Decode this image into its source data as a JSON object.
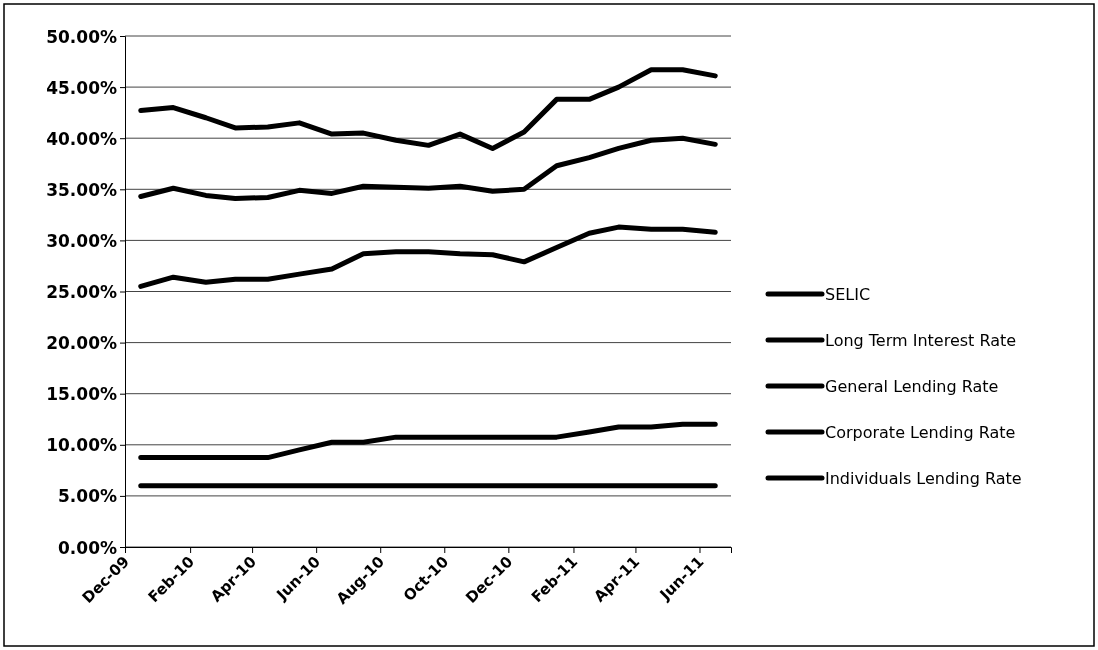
{
  "chart_data": {
    "type": "line",
    "x": [
      "2009-12-16",
      "2010-01-16",
      "2010-02-16",
      "2010-03-16",
      "2010-04-16",
      "2010-05-16",
      "2010-06-16",
      "2010-07-16",
      "2010-08-16",
      "2010-09-16",
      "2010-10-16",
      "2010-11-16",
      "2010-12-16",
      "2011-01-16",
      "2011-02-16",
      "2011-03-16",
      "2011-04-16",
      "2011-05-16",
      "2011-06-16"
    ],
    "series": [
      {
        "name": "SELIC",
        "color": "#000000",
        "values": [
          8.75,
          8.75,
          8.75,
          8.75,
          8.75,
          9.5,
          10.25,
          10.25,
          10.75,
          10.75,
          10.75,
          10.75,
          10.75,
          10.75,
          11.25,
          11.75,
          11.75,
          12.0,
          12.0
        ]
      },
      {
        "name": "Long Term Interest Rate",
        "color": "#000000",
        "values": [
          6,
          6,
          6,
          6,
          6,
          6,
          6,
          6,
          6,
          6,
          6,
          6,
          6,
          6,
          6,
          6,
          6,
          6,
          6
        ]
      },
      {
        "name": "General Lending Rate",
        "color": "#000000",
        "values": [
          34.3,
          35.1,
          34.4,
          34.1,
          34.2,
          34.9,
          34.6,
          35.3,
          35.2,
          35.1,
          35.3,
          34.8,
          35.0,
          37.3,
          38.1,
          39.0,
          39.8,
          40.0,
          39.4
        ]
      },
      {
        "name": "Corporate Lending Rate",
        "color": "#000000",
        "values": [
          25.5,
          26.4,
          25.9,
          26.2,
          26.2,
          26.7,
          27.2,
          28.7,
          28.9,
          28.9,
          28.7,
          28.6,
          27.9,
          29.3,
          30.7,
          31.3,
          31.1,
          31.1,
          30.8
        ]
      },
      {
        "name": "Individuals Lending Rate",
        "color": "#000000",
        "values": [
          42.7,
          43.0,
          42.0,
          41.0,
          41.1,
          41.5,
          40.4,
          40.5,
          39.8,
          39.3,
          40.4,
          39.0,
          40.6,
          43.8,
          43.8,
          45.0,
          46.7,
          46.7,
          46.1
        ]
      }
    ],
    "xlim": [
      "2009-12-01",
      "2011-07-01"
    ],
    "xticks": [
      {
        "value": "2009-12-01",
        "label": "Dec-09"
      },
      {
        "value": "2010-02-01",
        "label": "Feb-10"
      },
      {
        "value": "2010-04-01",
        "label": "Apr-10"
      },
      {
        "value": "2010-06-01",
        "label": "Jun-10"
      },
      {
        "value": "2010-08-01",
        "label": "Aug-10"
      },
      {
        "value": "2010-10-01",
        "label": "Oct-10"
      },
      {
        "value": "2010-12-01",
        "label": "Dec-10"
      },
      {
        "value": "2011-02-01",
        "label": "Feb-11"
      },
      {
        "value": "2011-04-01",
        "label": "Apr-11"
      },
      {
        "value": "2011-06-01",
        "label": "Jun-11"
      }
    ],
    "ylim": [
      0,
      50
    ],
    "yticks": [
      {
        "value": 0,
        "label": "0.00%"
      },
      {
        "value": 5,
        "label": "5.00%"
      },
      {
        "value": 10,
        "label": "10.00%"
      },
      {
        "value": 15,
        "label": "15.00%"
      },
      {
        "value": 20,
        "label": "20.00%"
      },
      {
        "value": 25,
        "label": "25.00%"
      },
      {
        "value": 30,
        "label": "30.00%"
      },
      {
        "value": 35,
        "label": "35.00%"
      },
      {
        "value": 40,
        "label": "40.00%"
      },
      {
        "value": 45,
        "label": "45.00%"
      },
      {
        "value": 50,
        "label": "50.00%"
      }
    ],
    "grid": "y",
    "legend": "right",
    "marker": "none",
    "line_style": "solid"
  }
}
